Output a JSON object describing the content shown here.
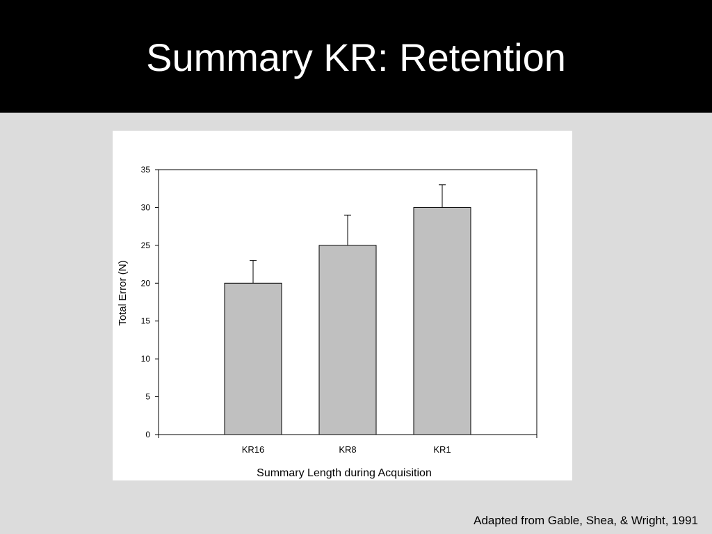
{
  "slide": {
    "title": "Summary KR: Retention",
    "citation": "Adapted from Gable, Shea, & Wright, 1991"
  },
  "chart_data": {
    "type": "bar",
    "categories": [
      "KR16",
      "KR8",
      "KR1"
    ],
    "values": [
      20,
      25,
      30
    ],
    "error_upper": [
      3,
      4,
      3
    ],
    "xlabel": "Summary Length during Acquisition",
    "ylabel": "Total Error (N)",
    "ylim": [
      0,
      35
    ],
    "yticks": [
      0,
      5,
      10,
      15,
      20,
      25,
      30,
      35
    ],
    "grid": false,
    "bar_color": "#c0c0c0",
    "bar_edge_color": "#000000"
  }
}
